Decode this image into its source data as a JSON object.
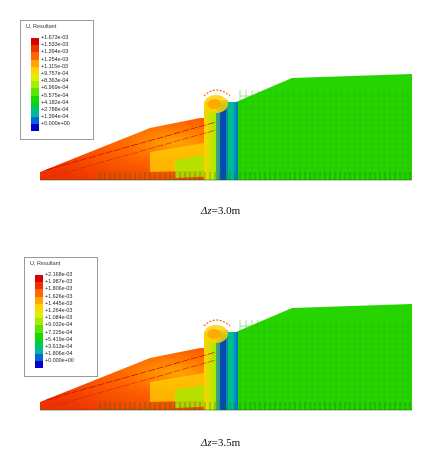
{
  "palette": [
    "#d90000",
    "#ee3300",
    "#ff6600",
    "#ffa500",
    "#ffd200",
    "#ddf000",
    "#a5ec00",
    "#5ae600",
    "#18d800",
    "#00cc4c",
    "#00b8a0",
    "#0066dd",
    "#0000cc"
  ],
  "panels": [
    {
      "legend": {
        "title": "U, Resultant",
        "values": [
          "+1.673e-03",
          "+1.533e-03",
          "+1.394e-03",
          "+1.254e-03",
          "+1.115e-03",
          "+9.757e-04",
          "+8.363e-04",
          "+6.969e-04",
          "+5.575e-04",
          "+4.182e-04",
          "+2.788e-04",
          "+1.394e-04",
          "+0.000e+00"
        ]
      },
      "caption": {
        "symbol": "Δz",
        "value": "=3.0m"
      }
    },
    {
      "legend": {
        "title": "U, Resultant",
        "values": [
          "+2.168e-03",
          "+1.987e-03",
          "+1.806e-03",
          "+1.626e-03",
          "+1.445e-03",
          "+1.264e-03",
          "+1.084e-03",
          "+9.032e-04",
          "+7.225e-04",
          "+5.419e-04",
          "+3.613e-04",
          "+1.806e-04",
          "+0.000e+00"
        ]
      },
      "caption": {
        "symbol": "Δz",
        "value": "=3.5m"
      }
    }
  ]
}
